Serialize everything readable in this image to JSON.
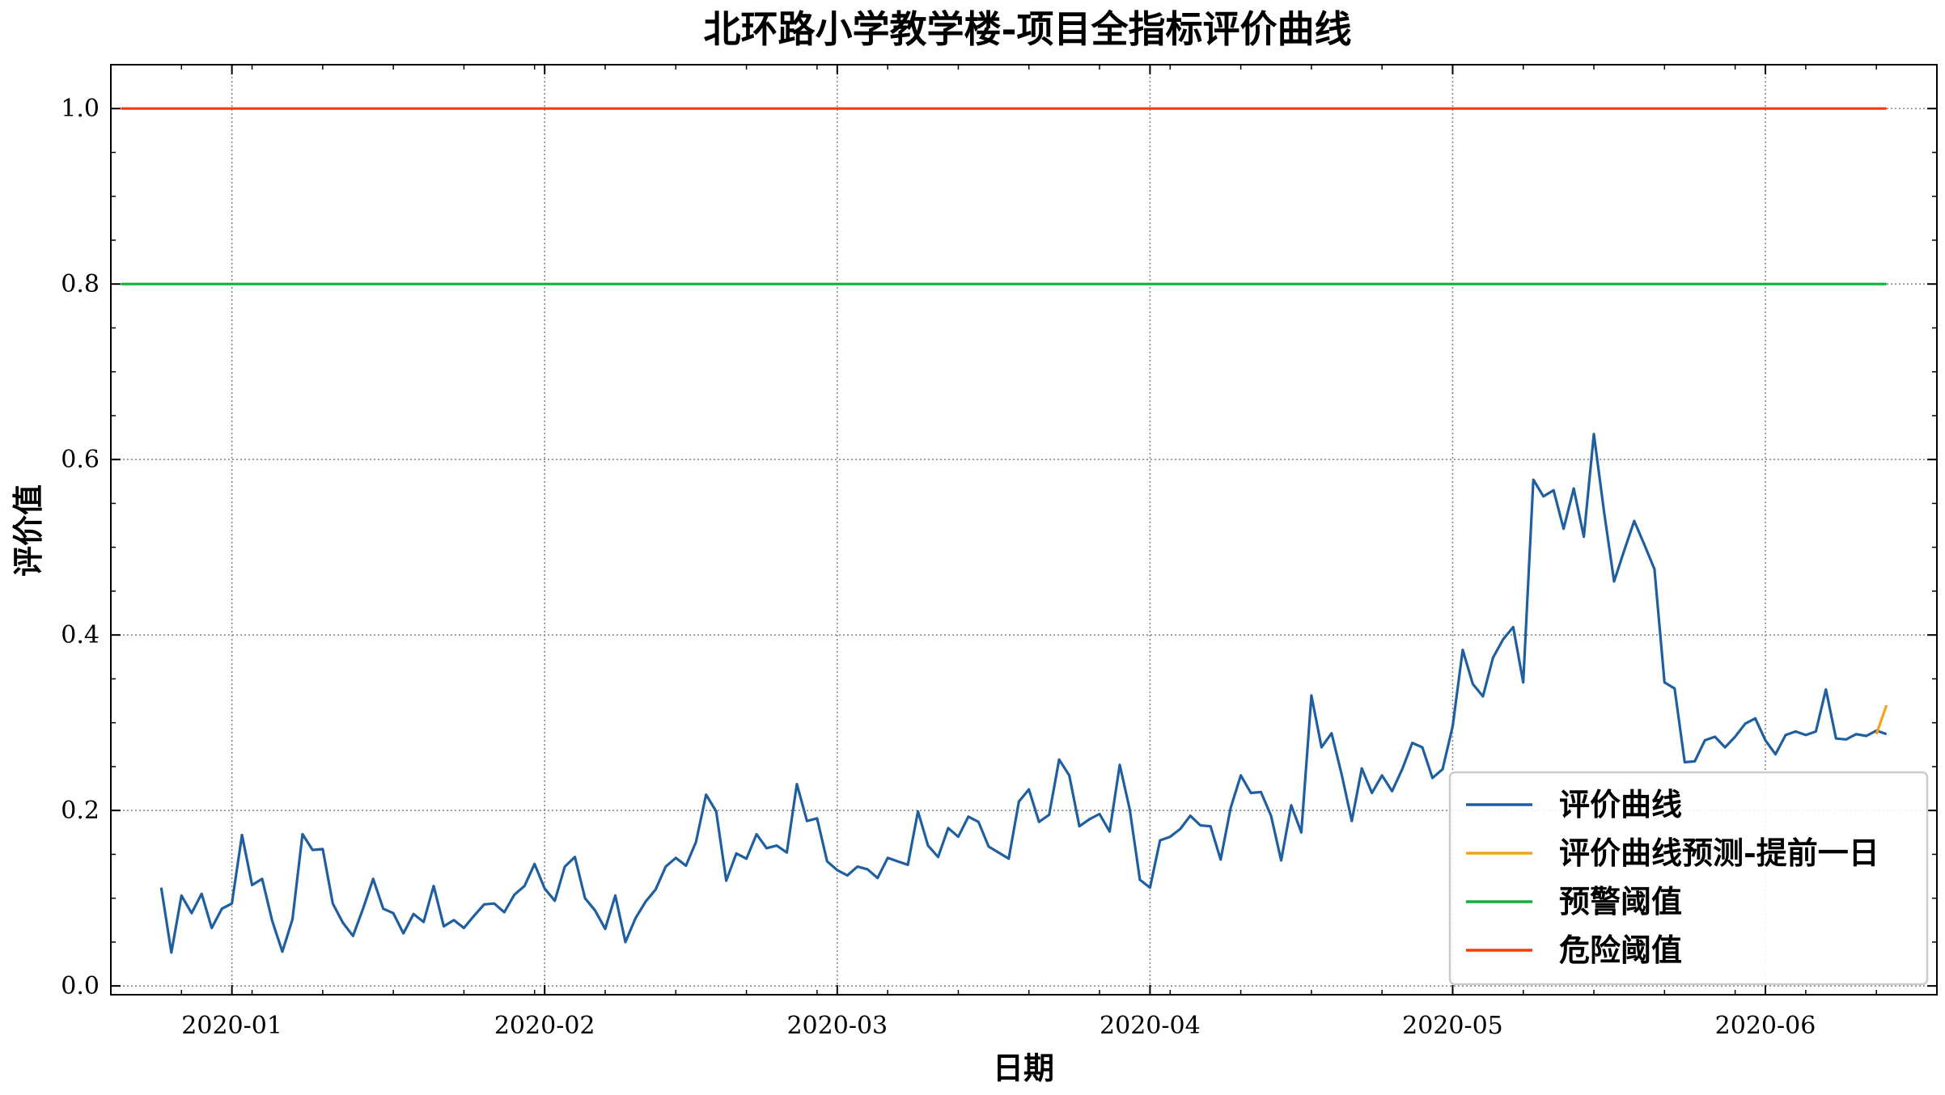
{
  "colors": {
    "series": "#1f5fa0",
    "forecast": "#f5a11c",
    "warning": "#11b03a",
    "danger": "#f23b0c",
    "grid": "#8a8a8a"
  },
  "chart_data": {
    "type": "line",
    "title": "北环路小学教学楼-项目全指标评价曲线",
    "xlabel": "日期",
    "ylabel": "评价值",
    "grid": true,
    "legend_position": "lower-right",
    "xlim": [
      "2019-12-20",
      "2020-06-18"
    ],
    "ylim": [
      -0.01,
      1.05
    ],
    "x_ticks": [
      {
        "date": "2020-01-01",
        "label": "2020-01"
      },
      {
        "date": "2020-02-01",
        "label": "2020-02"
      },
      {
        "date": "2020-03-01",
        "label": "2020-03"
      },
      {
        "date": "2020-04-01",
        "label": "2020-04"
      },
      {
        "date": "2020-05-01",
        "label": "2020-05"
      },
      {
        "date": "2020-06-01",
        "label": "2020-06"
      }
    ],
    "y_ticks": [
      0.0,
      0.2,
      0.4,
      0.6,
      0.8,
      1.0
    ],
    "y_tick_labels": [
      "0.0",
      "0.2",
      "0.4",
      "0.6",
      "0.8",
      "1.0"
    ],
    "series": [
      {
        "name": "评价曲线",
        "color": "#1f5fa0",
        "x_start": "2019-12-25",
        "step_days": 1,
        "values": [
          0.112,
          0.038,
          0.103,
          0.083,
          0.105,
          0.066,
          0.088,
          0.094,
          0.172,
          0.115,
          0.122,
          0.074,
          0.039,
          0.076,
          0.173,
          0.155,
          0.156,
          0.094,
          0.072,
          0.057,
          0.088,
          0.122,
          0.088,
          0.083,
          0.06,
          0.082,
          0.073,
          0.114,
          0.068,
          0.075,
          0.066,
          0.08,
          0.093,
          0.094,
          0.084,
          0.104,
          0.114,
          0.139,
          0.111,
          0.097,
          0.136,
          0.147,
          0.1,
          0.086,
          0.065,
          0.103,
          0.05,
          0.077,
          0.096,
          0.11,
          0.136,
          0.146,
          0.137,
          0.164,
          0.218,
          0.199,
          0.12,
          0.151,
          0.145,
          0.173,
          0.157,
          0.16,
          0.152,
          0.23,
          0.188,
          0.191,
          0.142,
          0.132,
          0.126,
          0.136,
          0.133,
          0.123,
          0.146,
          0.142,
          0.138,
          0.199,
          0.16,
          0.147,
          0.18,
          0.17,
          0.193,
          0.187,
          0.159,
          0.152,
          0.145,
          0.21,
          0.224,
          0.187,
          0.195,
          0.258,
          0.24,
          0.182,
          0.19,
          0.196,
          0.176,
          0.252,
          0.201,
          0.121,
          0.112,
          0.166,
          0.17,
          0.179,
          0.194,
          0.183,
          0.182,
          0.144,
          0.203,
          0.24,
          0.22,
          0.221,
          0.194,
          0.143,
          0.206,
          0.175,
          0.331,
          0.272,
          0.288,
          0.241,
          0.188,
          0.248,
          0.22,
          0.24,
          0.222,
          0.247,
          0.277,
          0.272,
          0.237,
          0.247,
          0.296,
          0.383,
          0.344,
          0.33,
          0.374,
          0.395,
          0.409,
          0.346,
          0.577,
          0.558,
          0.565,
          0.521,
          0.567,
          0.512,
          0.629,
          0.541,
          0.461,
          0.496,
          0.53,
          0.503,
          0.475,
          0.346,
          0.339,
          0.255,
          0.256,
          0.28,
          0.284,
          0.272,
          0.284,
          0.299,
          0.305,
          0.28,
          0.264,
          0.286,
          0.29,
          0.286,
          0.29,
          0.338,
          0.282,
          0.281,
          0.287,
          0.285,
          0.291,
          0.287
        ]
      },
      {
        "name": "评价曲线预测-提前一日",
        "color": "#f5a11c",
        "x": [
          "2020-06-12",
          "2020-06-13"
        ],
        "values": [
          0.287,
          0.32
        ]
      },
      {
        "name": "预警阈值",
        "color": "#11b03a",
        "x": [
          "2019-12-21",
          "2020-06-13"
        ],
        "values": [
          0.8,
          0.8
        ]
      },
      {
        "name": "危险阈值",
        "color": "#f23b0c",
        "x": [
          "2019-12-21",
          "2020-06-13"
        ],
        "values": [
          1.0,
          1.0
        ]
      }
    ]
  }
}
